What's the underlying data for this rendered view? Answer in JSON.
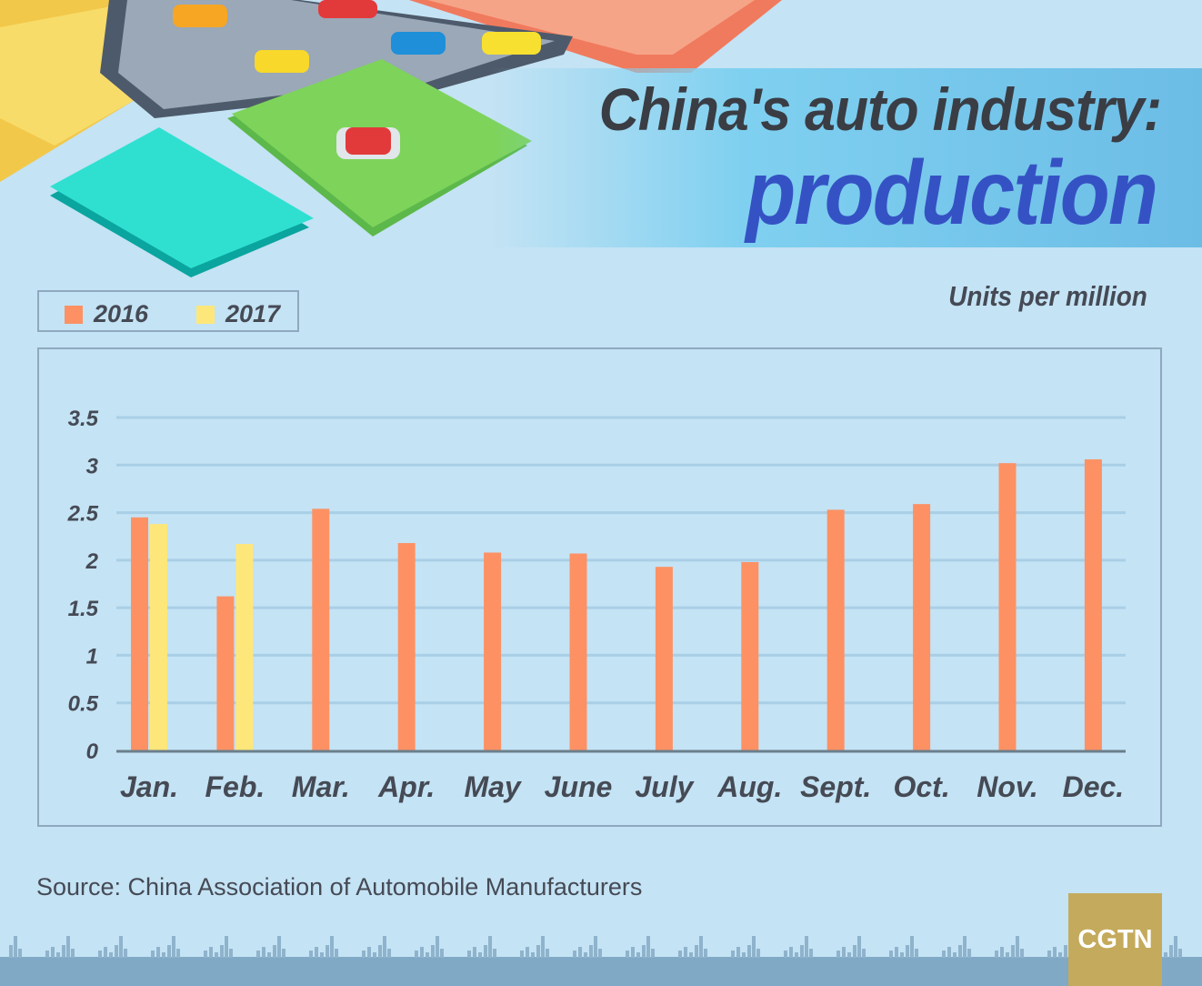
{
  "title_line1": "China's auto industry:",
  "title_line2": "production",
  "source": "Source: China Association of Automobile Manufacturers",
  "logo": "CGTN",
  "colors": {
    "series_2016": "#fd9164",
    "series_2017": "#fee77a",
    "title_accent": "#3552c4",
    "background": "#c4e3f4"
  },
  "chart_data": {
    "type": "bar",
    "unit_label": "Units per million",
    "categories": [
      "Jan.",
      "Feb.",
      "Mar.",
      "Apr.",
      "May",
      "June",
      "July",
      "Aug.",
      "Sept.",
      "Oct.",
      "Nov.",
      "Dec."
    ],
    "series": [
      {
        "name": "2016",
        "values": [
          2.45,
          1.62,
          2.54,
          2.18,
          2.08,
          2.07,
          1.93,
          1.98,
          2.53,
          2.59,
          3.02,
          3.06
        ]
      },
      {
        "name": "2017",
        "values": [
          2.38,
          2.17,
          null,
          null,
          null,
          null,
          null,
          null,
          null,
          null,
          null,
          null
        ]
      }
    ],
    "yticks": [
      "0",
      "0.5",
      "1",
      "1.5",
      "2",
      "2.5",
      "3",
      "3.5"
    ],
    "ylim": [
      0,
      3.5
    ],
    "grid": true,
    "legend_placement": "top-left"
  }
}
